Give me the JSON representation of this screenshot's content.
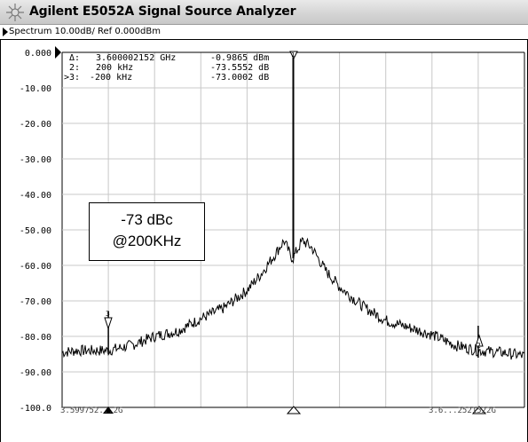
{
  "window": {
    "title": "Agilent E5052A Signal Source Analyzer",
    "icon": "sun-burst-icon"
  },
  "header": {
    "trace_info": "Spectrum 10.00dB/ Ref 0.000dBm"
  },
  "markers": {
    "rows": [
      {
        "id": "Δ:",
        "freq": "3.600002152 GHz",
        "value": "-0.9865 dBm"
      },
      {
        "id": "2:",
        "freq": "200 kHz",
        "value": "-73.5552 dB"
      },
      {
        "id": ">3:",
        "freq": "-200 kHz",
        "value": "-73.0002 dB"
      }
    ],
    "labels": [
      "1",
      "2",
      "3"
    ]
  },
  "annotation": {
    "line1": "-73 dBc",
    "line2": "@200KHz"
  },
  "chart_data": {
    "type": "line",
    "title": "",
    "xlabel": "",
    "ylabel": "",
    "x_start_label": "3.599752...2G",
    "x_end_label": "3.6...2521522G",
    "ylim": [
      -100,
      0
    ],
    "y_ticks": [
      "0.000",
      "-10.00",
      "-20.00",
      "-30.00",
      "-40.00",
      "-50.00",
      "-60.00",
      "-70.00",
      "-80.00",
      "-90.00",
      "-100.0"
    ],
    "grid": true,
    "x_divisions": 10,
    "series": [
      {
        "x": [
          0,
          0.3,
          0.6,
          1,
          1.5,
          2,
          2.5,
          3,
          3.5,
          4,
          4.3,
          4.6,
          4.8,
          4.95,
          5,
          5.05,
          5.2,
          5.4,
          5.7,
          6,
          6.5,
          7,
          7.5,
          8,
          8.5,
          9,
          9.5,
          10
        ],
        "values": [
          -84.5,
          -84.0,
          -84.0,
          -84.0,
          -82.5,
          -80.0,
          -78.5,
          -75.0,
          -72.0,
          -67.0,
          -62.5,
          -57.0,
          -53.0,
          -57.5,
          -58.0,
          -56.5,
          -53.0,
          -55.0,
          -61.5,
          -66.0,
          -71.5,
          -75.5,
          -77.5,
          -79.5,
          -82.5,
          -84.0,
          -84.5,
          -85.5
        ],
        "color": "#000000"
      }
    ],
    "carrier_peak": {
      "x": 5.0,
      "value": -0.99
    }
  }
}
